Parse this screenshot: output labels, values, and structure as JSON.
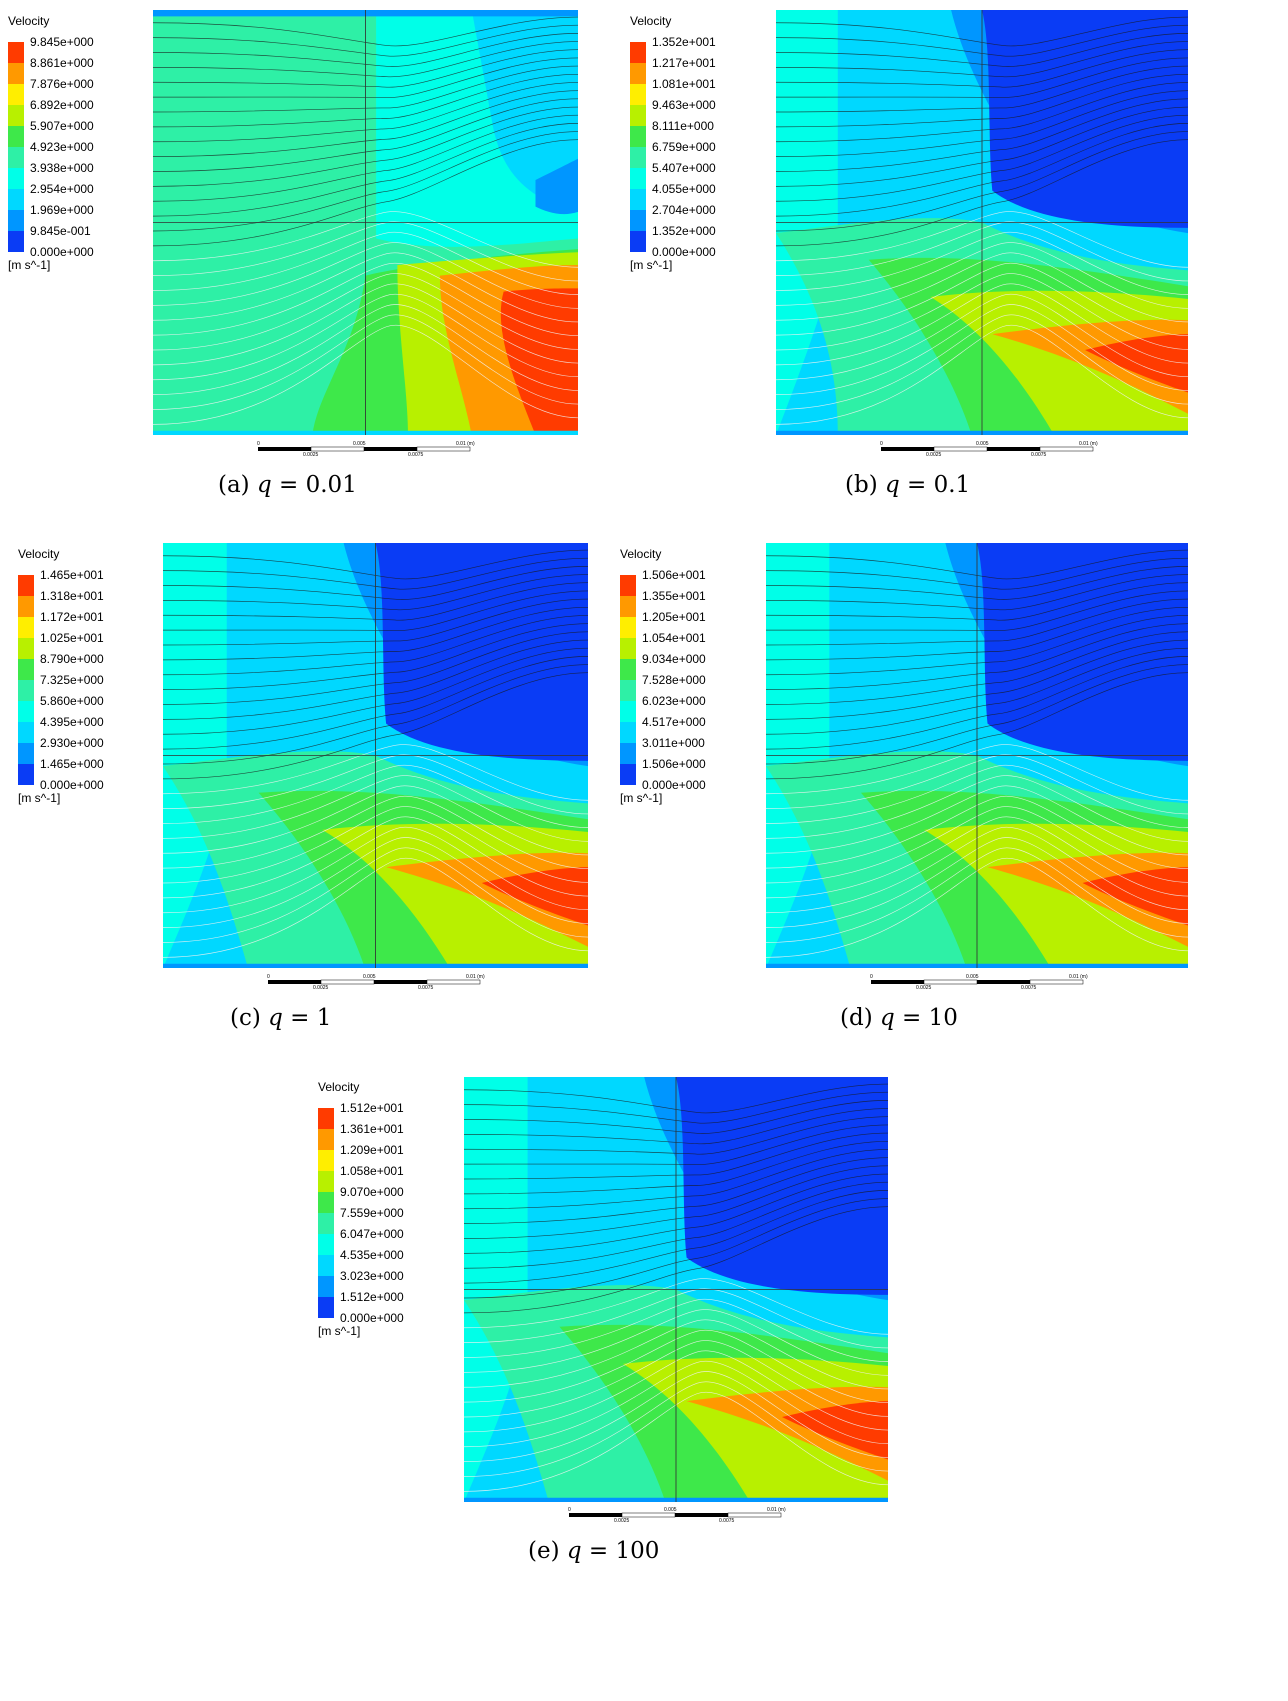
{
  "legend_title": "Velocity",
  "unit": "[m s^-1]",
  "colors": [
    "#ff3b00",
    "#ff9900",
    "#ffee00",
    "#b8f000",
    "#3ee84a",
    "#2ef0a6",
    "#00ffe8",
    "#00d8ff",
    "#0096ff",
    "#0a3cf5"
  ],
  "scale": {
    "ticks": [
      "0",
      "0.005",
      "0.01"
    ],
    "unit": "(m)",
    "minor_ticks": [
      "0.0025",
      "0.0075"
    ]
  },
  "panels": [
    {
      "id": "a",
      "caption_prefix": "(a)",
      "variable": "q",
      "q": "0.01",
      "legend": [
        "9.845e+000",
        "8.861e+000",
        "7.876e+000",
        "6.892e+000",
        "5.907e+000",
        "4.923e+000",
        "3.938e+000",
        "2.954e+000",
        "1.969e+000",
        "9.845e-001",
        "0.000e+000"
      ]
    },
    {
      "id": "b",
      "caption_prefix": "(b)",
      "variable": "q",
      "q": "0.1",
      "legend": [
        "1.352e+001",
        "1.217e+001",
        "1.081e+001",
        "9.463e+000",
        "8.111e+000",
        "6.759e+000",
        "5.407e+000",
        "4.055e+000",
        "2.704e+000",
        "1.352e+000",
        "0.000e+000"
      ]
    },
    {
      "id": "c",
      "caption_prefix": "(c)",
      "variable": "q",
      "q": "1",
      "legend": [
        "1.465e+001",
        "1.318e+001",
        "1.172e+001",
        "1.025e+001",
        "8.790e+000",
        "7.325e+000",
        "5.860e+000",
        "4.395e+000",
        "2.930e+000",
        "1.465e+000",
        "0.000e+000"
      ]
    },
    {
      "id": "d",
      "caption_prefix": "(d)",
      "variable": "q",
      "q": "10",
      "legend": [
        "1.506e+001",
        "1.355e+001",
        "1.205e+001",
        "1.054e+001",
        "9.034e+000",
        "7.528e+000",
        "6.023e+000",
        "4.517e+000",
        "3.011e+000",
        "1.506e+000",
        "0.000e+000"
      ]
    },
    {
      "id": "e",
      "caption_prefix": "(e)",
      "variable": "q",
      "q": "100",
      "legend": [
        "1.512e+001",
        "1.361e+001",
        "1.209e+001",
        "1.058e+001",
        "9.070e+000",
        "7.559e+000",
        "6.047e+000",
        "4.535e+000",
        "3.023e+000",
        "1.512e+000",
        "0.000e+000"
      ]
    }
  ]
}
